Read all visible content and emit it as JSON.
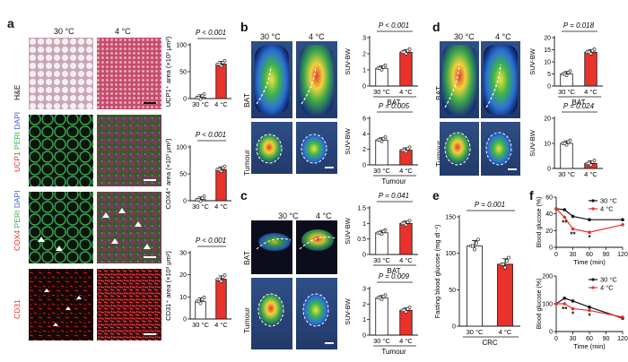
{
  "panel_letters": {
    "a": "a",
    "b": "b",
    "c": "c",
    "d": "d",
    "e": "e",
    "f": "f"
  },
  "a": {
    "col_30": "30 °C",
    "col_4": "4 °C",
    "row_he": "H&E",
    "row2_ucp1": "UCP1",
    "row2_peri": "PERI",
    "row2_dapi": "DAPI",
    "row3_cox4": "COX4",
    "row3_peri": "PERI",
    "row3_dapi": "DAPI",
    "row4_cd31": "CD31"
  },
  "b": {
    "col_30": "30 °C",
    "col_4": "4 °C",
    "row_bat": "BAT",
    "row_tumour": "Tumour"
  },
  "c": {
    "col_30": "30 °C",
    "col_4": "4 °C",
    "row_bat": "BAT",
    "row_tumour": "Tumour"
  },
  "d": {
    "col_30": "30 °C",
    "col_4": "4 °C",
    "row_bat": "BAT",
    "row_tumour": "Tumour"
  },
  "chart_data": [
    {
      "id": "a1",
      "type": "bar",
      "categories": [
        "30 °C",
        "4 °C"
      ],
      "values": [
        2,
        64
      ],
      "ylim": [
        0,
        100
      ],
      "yticks": [
        0,
        50,
        100
      ],
      "ylabel": "UCP1⁺ area (×10³ μm²)",
      "p_text": "P < 0.001",
      "colors": [
        "#ffffff",
        "#e8322a"
      ]
    },
    {
      "id": "a2",
      "type": "bar",
      "categories": [
        "30 °C",
        "4 °C"
      ],
      "values": [
        2,
        58
      ],
      "ylim": [
        0,
        100
      ],
      "yticks": [
        0,
        50,
        100
      ],
      "ylabel": "COX4⁺ area (×10³ μm²)",
      "p_text": "P < 0.001",
      "colors": [
        "#ffffff",
        "#e8322a"
      ]
    },
    {
      "id": "a3",
      "type": "bar",
      "categories": [
        "30 °C",
        "4 °C"
      ],
      "values": [
        8,
        18
      ],
      "ylim": [
        0,
        30
      ],
      "yticks": [
        0,
        10,
        20,
        30
      ],
      "ylabel": "CD31⁺ area (×10³ μm²)",
      "p_text": "P < 0.001",
      "colors": [
        "#ffffff",
        "#e8322a"
      ]
    },
    {
      "id": "b1",
      "type": "bar",
      "categories": [
        "30 °C",
        "4 °C"
      ],
      "values": [
        1.1,
        2.1
      ],
      "ylim": [
        0,
        3
      ],
      "yticks": [
        0,
        1,
        2,
        3
      ],
      "ylabel": "SUV-BW",
      "xlabel": "BAT",
      "p_text": "P < 0.001",
      "colors": [
        "#ffffff",
        "#e8322a"
      ]
    },
    {
      "id": "b2",
      "type": "bar",
      "categories": [
        "30 °C",
        "4 °C"
      ],
      "values": [
        3.2,
        1.9
      ],
      "ylim": [
        0,
        6
      ],
      "yticks": [
        0,
        2,
        4,
        6
      ],
      "ylabel": "SUV-BW",
      "xlabel": "Tumour",
      "p_text": "P = 0.005",
      "colors": [
        "#ffffff",
        "#e8322a"
      ]
    },
    {
      "id": "c1",
      "type": "bar",
      "categories": [
        "30 °C",
        "4 °C"
      ],
      "values": [
        0.7,
        1.0
      ],
      "ylim": [
        0,
        1.5
      ],
      "yticks": [
        0,
        0.5,
        1.0,
        1.5
      ],
      "ylabel": "SUV-BW",
      "xlabel": "BAT",
      "p_text": "P = 0.041",
      "colors": [
        "#ffffff",
        "#e8322a"
      ]
    },
    {
      "id": "c2",
      "type": "bar",
      "categories": [
        "30 °C",
        "4 °C"
      ],
      "values": [
        2.4,
        1.6
      ],
      "ylim": [
        0,
        3
      ],
      "yticks": [
        0,
        1,
        2,
        3
      ],
      "ylabel": "SUV-BW",
      "xlabel": "Tumour",
      "p_text": "P = 0.009",
      "colors": [
        "#ffffff",
        "#e8322a"
      ]
    },
    {
      "id": "d1",
      "type": "bar",
      "categories": [
        "30 °C",
        "4 °C"
      ],
      "values": [
        5,
        14
      ],
      "ylim": [
        0,
        20
      ],
      "yticks": [
        0,
        5,
        10,
        15,
        20
      ],
      "ylabel": "SUV-BW",
      "xlabel": "BAT",
      "p_text": "P = 0.018",
      "colors": [
        "#ffffff",
        "#e8322a"
      ]
    },
    {
      "id": "d2",
      "type": "bar",
      "categories": [
        "30 °C",
        "4 °C"
      ],
      "values": [
        10,
        2
      ],
      "ylim": [
        0,
        20
      ],
      "yticks": [
        0,
        10,
        20
      ],
      "ylabel": "SUV-BW",
      "xlabel": "",
      "p_text": "P = 0.024",
      "colors": [
        "#ffffff",
        "#e8322a"
      ]
    },
    {
      "id": "e1",
      "type": "bar",
      "categories": [
        "30 °C",
        "4 °C"
      ],
      "values": [
        110,
        85
      ],
      "ylim": [
        0,
        150
      ],
      "yticks": [
        0,
        50,
        100,
        150
      ],
      "ylabel": "Fasting blood glucose (mg dl⁻¹)",
      "xlabel": "CRC",
      "p_text": "P = 0.001",
      "colors": [
        "#ffffff",
        "#e8322a"
      ]
    },
    {
      "id": "f1",
      "type": "line",
      "x": [
        0,
        15,
        30,
        60,
        120
      ],
      "xlim": [
        0,
        120
      ],
      "xticks": [
        0,
        30,
        60,
        90,
        120
      ],
      "ylim": [
        0,
        60
      ],
      "yticks": [
        0,
        20,
        40,
        60
      ],
      "ylabel": "Blood glucose (%)",
      "xlabel": "Time (min)",
      "series": [
        {
          "name": "30 °C",
          "color": "#111111",
          "values": [
            46,
            45,
            37,
            33,
            33
          ]
        },
        {
          "name": "4 °C",
          "color": "#e8322a",
          "values": [
            46,
            36,
            22,
            18,
            27
          ]
        }
      ],
      "annotations": [
        "**",
        "**",
        "*"
      ]
    },
    {
      "id": "f2",
      "type": "line",
      "x": [
        0,
        15,
        30,
        60,
        120
      ],
      "xlim": [
        0,
        120
      ],
      "xticks": [
        0,
        30,
        60,
        90,
        120
      ],
      "ylim": [
        0,
        200
      ],
      "yticks": [
        0,
        100,
        200
      ],
      "ylabel": "Blood glucose (%)",
      "xlabel": "Time (min)",
      "series": [
        {
          "name": "30 °C",
          "color": "#111111",
          "values": [
            100,
            120,
            110,
            88,
            48
          ]
        },
        {
          "name": "4 °C",
          "color": "#e8322a",
          "values": [
            100,
            100,
            82,
            76,
            52
          ]
        }
      ],
      "annotations": [
        "**",
        "*",
        "*"
      ]
    }
  ]
}
